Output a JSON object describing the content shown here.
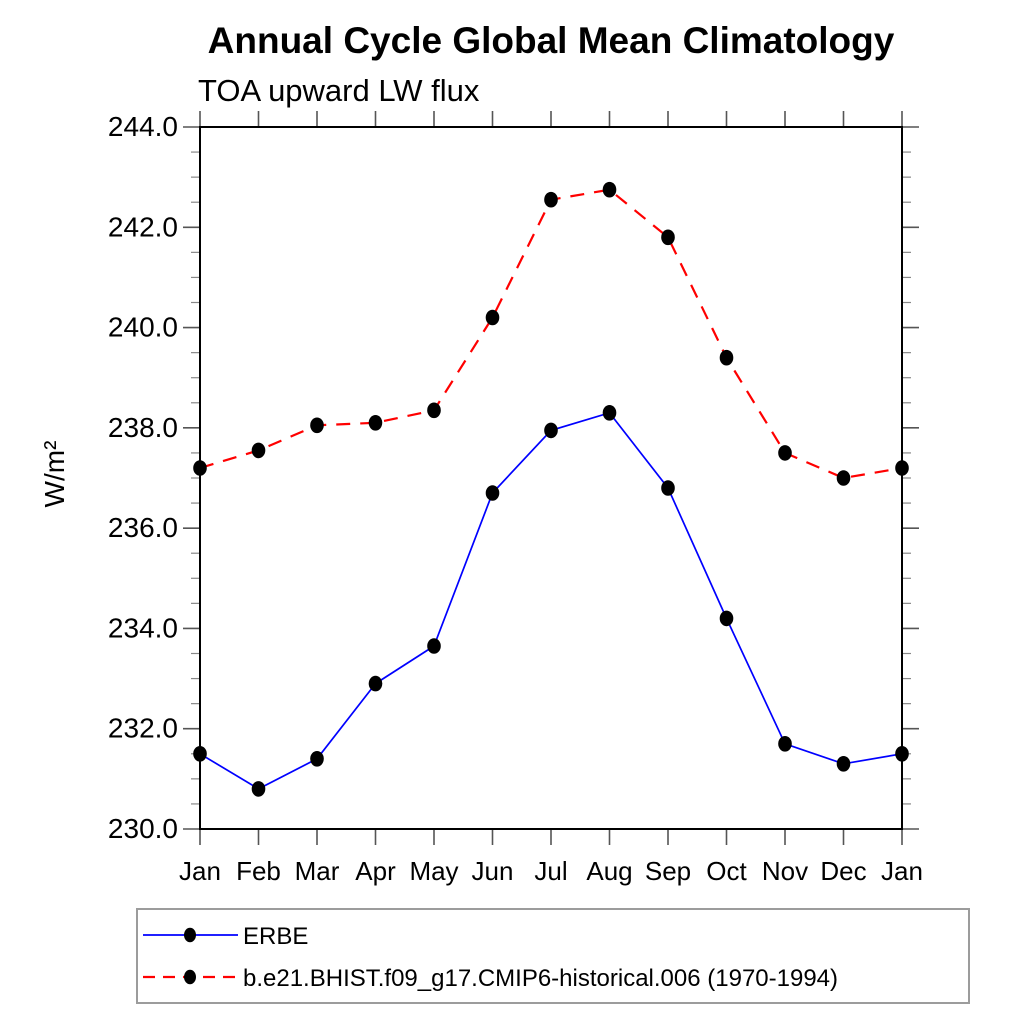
{
  "title": "Annual Cycle Global Mean Climatology",
  "subtitle": "TOA upward LW flux",
  "chart_data": {
    "type": "line",
    "title": "Annual Cycle Global Mean Climatology",
    "subtitle": "TOA upward LW flux",
    "ylabel": "W/m²",
    "xlabel": "",
    "x_categories": [
      "Jan",
      "Feb",
      "Mar",
      "Apr",
      "May",
      "Jun",
      "Jul",
      "Aug",
      "Sep",
      "Oct",
      "Nov",
      "Dec",
      "Jan"
    ],
    "ylim": [
      230.0,
      244.0
    ],
    "y_major_step": 2.0,
    "y_minor_step": 0.5,
    "y_tick_labels": [
      "230.0",
      "232.0",
      "234.0",
      "236.0",
      "238.0",
      "240.0",
      "242.0",
      "244.0"
    ],
    "grid": false,
    "legend_position": "bottom-left",
    "marker_color": "#000000",
    "series": [
      {
        "name": "ERBE",
        "color": "#0000ff",
        "line_style": "solid",
        "marker": "filled-circle",
        "values": [
          231.5,
          230.8,
          231.4,
          232.9,
          233.65,
          236.7,
          237.95,
          238.3,
          236.8,
          234.2,
          231.7,
          231.3,
          231.5
        ]
      },
      {
        "name": "b.e21.BHIST.f09_g17.CMIP6-historical.006 (1970-1994)",
        "color": "#ff0000",
        "line_style": "dashed",
        "marker": "filled-circle",
        "values": [
          237.2,
          237.55,
          238.05,
          238.1,
          238.35,
          240.2,
          242.55,
          242.75,
          241.8,
          239.4,
          237.5,
          237.0,
          237.2
        ]
      }
    ]
  }
}
